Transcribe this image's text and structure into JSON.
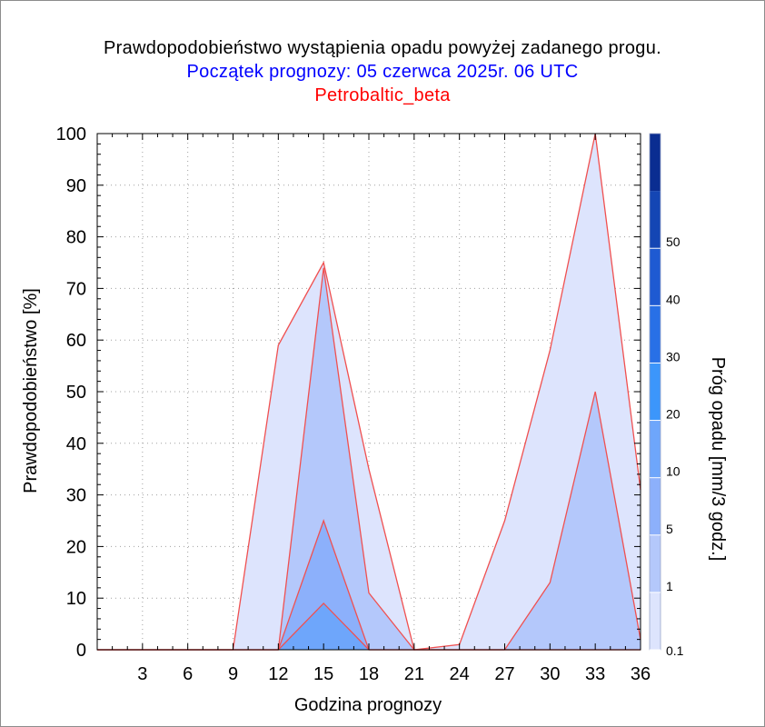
{
  "chart_data": {
    "type": "area",
    "title": "Prawdopodobieństwo wystąpienia opadu powyżej zadanego progu.",
    "subtitle": "Początek prognozy: 05 czerwca 2025r. 06 UTC",
    "subtitle2": "Petrobaltic_beta",
    "xlabel": "Godzina prognozy",
    "ylabel": "Prawdopodobieństwo [%]",
    "colorbar_label": "Próg opadu [mm/3 godz.]",
    "xlim": [
      0,
      36
    ],
    "ylim": [
      0,
      100
    ],
    "x_ticks": [
      3,
      6,
      9,
      12,
      15,
      18,
      21,
      24,
      27,
      30,
      33,
      36
    ],
    "y_ticks": [
      0,
      10,
      20,
      30,
      40,
      50,
      60,
      70,
      80,
      90,
      100
    ],
    "x": [
      0,
      3,
      6,
      9,
      12,
      15,
      18,
      21,
      24,
      27,
      30,
      33,
      36
    ],
    "series": [
      {
        "threshold": 0.1,
        "color": "#dde4fd",
        "values": [
          0,
          0,
          0,
          0,
          59,
          75,
          35,
          0,
          1,
          25,
          58,
          100,
          31
        ]
      },
      {
        "threshold": 1,
        "color": "#b4c8fb",
        "values": [
          0,
          0,
          0,
          0,
          0,
          74,
          11,
          0,
          0,
          0,
          13,
          50,
          2
        ]
      },
      {
        "threshold": 5,
        "color": "#8cb0fb",
        "values": [
          0,
          0,
          0,
          0,
          0,
          25,
          0,
          0,
          0,
          0,
          0,
          0,
          0
        ]
      },
      {
        "threshold": 10,
        "color": "#6ea6fb",
        "values": [
          0,
          0,
          0,
          0,
          0,
          9,
          0,
          0,
          0,
          0,
          0,
          0,
          0
        ]
      }
    ],
    "series_line_color": "#f05050",
    "colorbar": {
      "ticks": [
        "0.1",
        "1",
        "5",
        "10",
        "20",
        "30",
        "40",
        "50"
      ],
      "colors": [
        "#dde4fd",
        "#b4c8fb",
        "#8cb0fb",
        "#6ea6fb",
        "#3c96fb",
        "#2870e6",
        "#1e5ad2",
        "#1446b4"
      ],
      "top_color": "#0a2d91"
    },
    "title_color": "#000000",
    "subtitle_color": "#0000ff",
    "subtitle2_color": "#ff0000"
  }
}
